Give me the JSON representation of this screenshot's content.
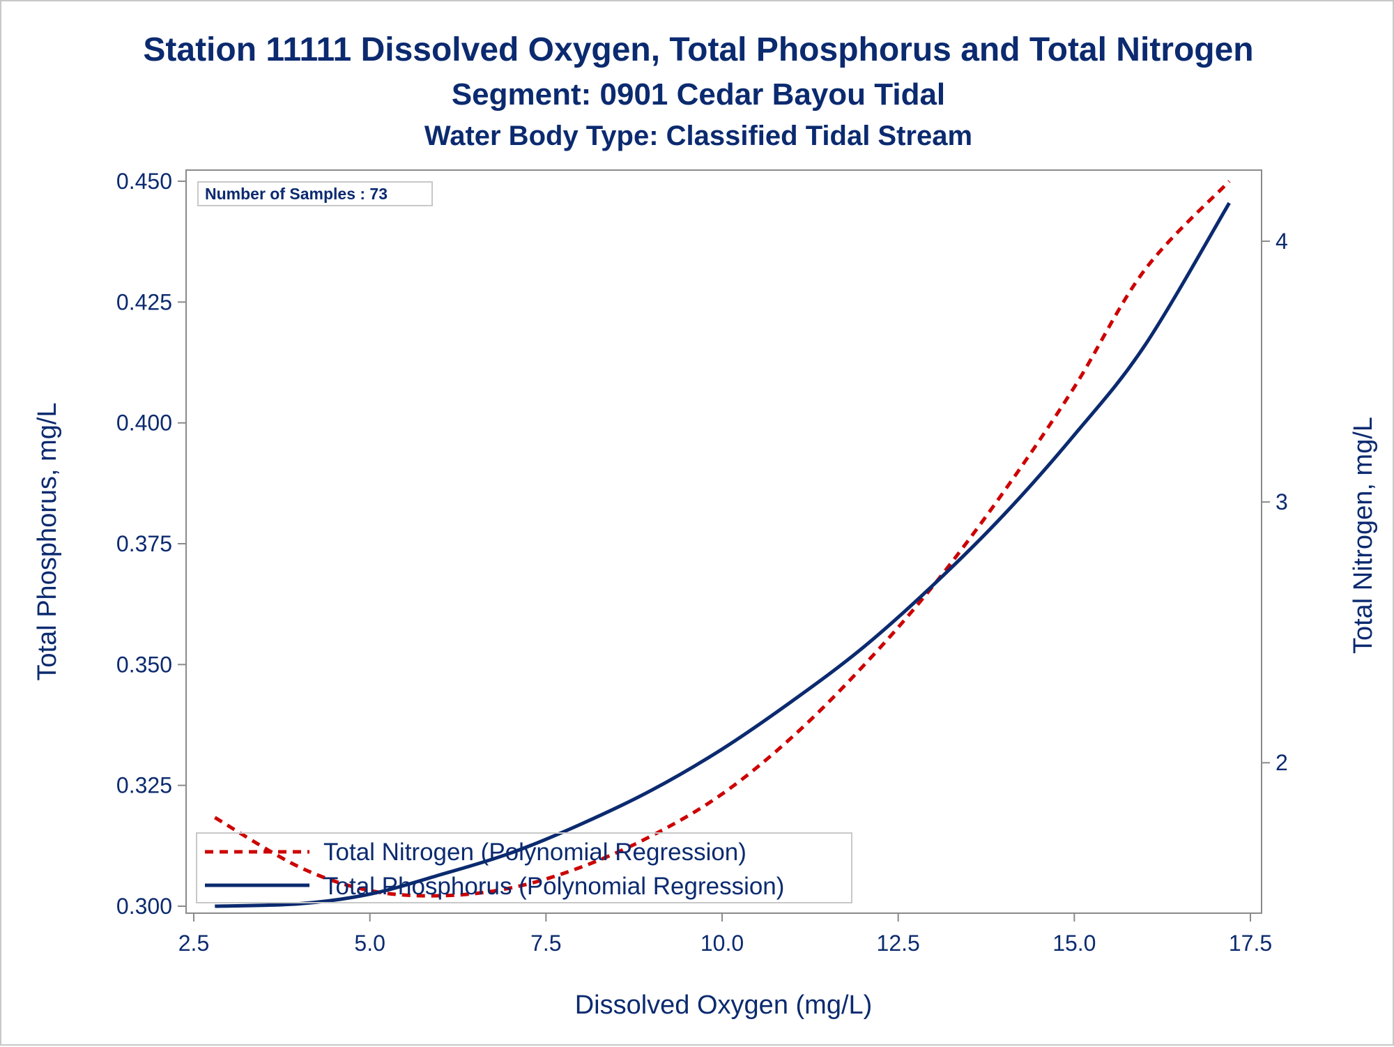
{
  "colors": {
    "text": "#0b2a6f",
    "axis": "#8a8a8a",
    "tn_line": "#cc0000",
    "tp_line": "#0b2a6f"
  },
  "chart_data": {
    "type": "line",
    "title": "Station 11111  Dissolved Oxygen, Total Phosphorus and Total Nitrogen",
    "subtitle": "Segment: 0901  Cedar Bayou Tidal",
    "subtitle2": "Water Body Type: Classified Tidal Stream",
    "xlabel": "Dissolved Oxygen (mg/L)",
    "ylabel": "Total Phosphorus, mg/L",
    "y2label": "Total Nitrogen, mg/L",
    "xlim": [
      2.5,
      17.5
    ],
    "ylim": [
      0.3,
      0.45
    ],
    "y2lim": [
      1.45,
      4.23
    ],
    "x_ticks": [
      "2.5",
      "5.0",
      "7.5",
      "10.0",
      "12.5",
      "15.0",
      "17.5"
    ],
    "y_ticks": [
      "0.300",
      "0.325",
      "0.350",
      "0.375",
      "0.400",
      "0.425",
      "0.450"
    ],
    "y2_ticks": [
      "2",
      "3",
      "4"
    ],
    "annotation": "Number of Samples : 73",
    "legend_position": "bottom-left",
    "grid": false,
    "series": [
      {
        "name": "Total Nitrogen (Polynomial Regression)",
        "axis": "y2",
        "style": "dashed",
        "x": [
          2.8,
          4.0,
          5.0,
          6.0,
          7.0,
          8.0,
          9.0,
          10.0,
          11.0,
          12.0,
          13.0,
          14.0,
          15.0,
          16.0,
          17.2
        ],
        "y": [
          1.79,
          1.6,
          1.51,
          1.49,
          1.52,
          1.6,
          1.72,
          1.88,
          2.1,
          2.37,
          2.68,
          3.04,
          3.44,
          3.89,
          4.23
        ]
      },
      {
        "name": "Total Phosphorus (Polynomial Regression)",
        "axis": "y",
        "style": "solid",
        "x": [
          2.8,
          4.0,
          5.0,
          6.0,
          7.0,
          8.0,
          9.0,
          10.0,
          11.0,
          12.0,
          13.0,
          14.0,
          15.0,
          16.0,
          17.2
        ],
        "y": [
          0.3,
          0.3005,
          0.3025,
          0.3065,
          0.311,
          0.317,
          0.324,
          0.3325,
          0.3425,
          0.3535,
          0.3665,
          0.381,
          0.3975,
          0.416,
          0.4455
        ]
      }
    ]
  }
}
